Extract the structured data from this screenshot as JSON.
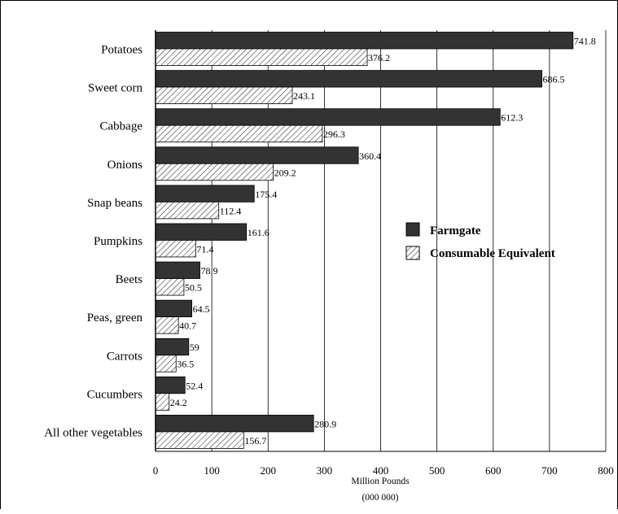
{
  "chart_data": {
    "type": "bar",
    "orientation": "horizontal",
    "categories": [
      "Potatoes",
      "Sweet corn",
      "Cabbage",
      "Onions",
      "Snap beans",
      "Pumpkins",
      "Beets",
      "Peas, green",
      "Carrots",
      "Cucumbers",
      "All other vegetables"
    ],
    "series": [
      {
        "name": "Farmgate",
        "values": [
          741.8,
          686.5,
          612.3,
          360.4,
          175.4,
          161.6,
          78.9,
          64.5,
          59,
          52.4,
          280.9
        ],
        "labels": [
          "741.8",
          "686.5",
          "612.3",
          "360.4",
          "175.4",
          "161.6",
          "78.9",
          "64.5",
          "59",
          "52.4",
          "280.9"
        ]
      },
      {
        "name": "Consumable Equivalent",
        "values": [
          376.2,
          243.1,
          296.3,
          209.2,
          112.4,
          71.4,
          50.5,
          40.7,
          36.5,
          24.2,
          156.7
        ],
        "labels": [
          "376.2",
          "243.1",
          "296.3",
          "209.2",
          "112.4",
          "71.4",
          "50.5",
          "40.7",
          "36.5",
          "24.2",
          "156.7"
        ]
      }
    ],
    "xlabel": "Million Pounds",
    "xlabel_line2": "(000 000)",
    "ylabel": "",
    "xlim": [
      0,
      800
    ],
    "xticks": [
      0,
      100,
      200,
      300,
      400,
      500,
      600,
      700,
      800
    ],
    "grid": "vertical",
    "legend_position": "right-middle",
    "colors": {
      "Farmgate": "#333333",
      "Consumable Equivalent": "hatched"
    }
  }
}
